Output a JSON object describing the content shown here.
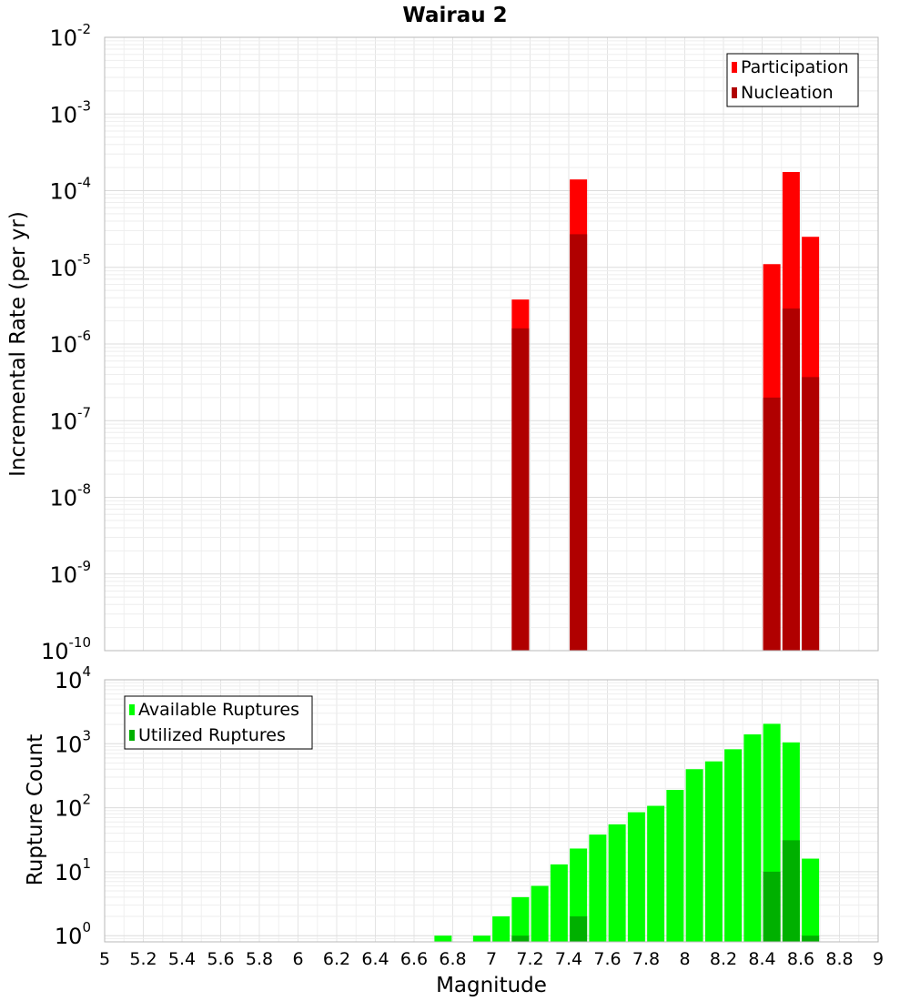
{
  "chart_data": [
    {
      "type": "bar",
      "title": "Wairau 2",
      "ylabel": "Incremental Rate (per yr)",
      "y_scale": "log",
      "ylim": [
        1e-10,
        0.01
      ],
      "y_ticks": [
        {
          "base": "10",
          "exp": "-2"
        },
        {
          "base": "10",
          "exp": "-3"
        },
        {
          "base": "10",
          "exp": "-4"
        },
        {
          "base": "10",
          "exp": "-5"
        },
        {
          "base": "10",
          "exp": "-6"
        },
        {
          "base": "10",
          "exp": "-7"
        },
        {
          "base": "10",
          "exp": "-8"
        },
        {
          "base": "10",
          "exp": "-9"
        },
        {
          "base": "10",
          "exp": "-10"
        }
      ],
      "xlim": [
        5,
        9
      ],
      "grid": true,
      "legend_position": "top-right",
      "series": [
        {
          "name": "Participation",
          "color": "#ff0000",
          "points": [
            {
              "x": 7.15,
              "y": 3.8e-06
            },
            {
              "x": 7.45,
              "y": 0.00014
            },
            {
              "x": 8.45,
              "y": 1.1e-05
            },
            {
              "x": 8.55,
              "y": 0.000175
            },
            {
              "x": 8.65,
              "y": 2.5e-05
            }
          ]
        },
        {
          "name": "Nucleation",
          "color": "#b00000",
          "points": [
            {
              "x": 7.15,
              "y": 1.6e-06
            },
            {
              "x": 7.45,
              "y": 2.7e-05
            },
            {
              "x": 8.45,
              "y": 2e-07
            },
            {
              "x": 8.55,
              "y": 2.9e-06
            },
            {
              "x": 8.65,
              "y": 3.7e-07
            }
          ]
        }
      ]
    },
    {
      "type": "bar",
      "ylabel": "Rupture Count",
      "xlabel": "Magnitude",
      "y_scale": "log",
      "ylim": [
        0.8,
        10000
      ],
      "y_ticks": [
        {
          "base": "10",
          "exp": "4"
        },
        {
          "base": "10",
          "exp": "3"
        },
        {
          "base": "10",
          "exp": "2"
        },
        {
          "base": "10",
          "exp": "1"
        },
        {
          "base": "10",
          "exp": "0"
        }
      ],
      "xlim": [
        5,
        9
      ],
      "x_ticks": [
        "5",
        "5.2",
        "5.4",
        "5.6",
        "5.8",
        "6",
        "6.2",
        "6.4",
        "6.6",
        "6.8",
        "7",
        "7.2",
        "7.4",
        "7.6",
        "7.8",
        "8",
        "8.2",
        "8.4",
        "8.6",
        "8.8",
        "9"
      ],
      "grid": true,
      "legend_position": "top-left",
      "series": [
        {
          "name": "Available Ruptures",
          "color": "#00ff00",
          "points": [
            {
              "x": 6.75,
              "y": 1
            },
            {
              "x": 6.95,
              "y": 1
            },
            {
              "x": 7.05,
              "y": 2
            },
            {
              "x": 7.15,
              "y": 4
            },
            {
              "x": 7.25,
              "y": 6
            },
            {
              "x": 7.35,
              "y": 13
            },
            {
              "x": 7.45,
              "y": 23
            },
            {
              "x": 7.55,
              "y": 38
            },
            {
              "x": 7.65,
              "y": 55
            },
            {
              "x": 7.75,
              "y": 85
            },
            {
              "x": 7.85,
              "y": 107
            },
            {
              "x": 7.95,
              "y": 190
            },
            {
              "x": 8.05,
              "y": 400
            },
            {
              "x": 8.15,
              "y": 530
            },
            {
              "x": 8.25,
              "y": 820
            },
            {
              "x": 8.35,
              "y": 1400
            },
            {
              "x": 8.45,
              "y": 2050
            },
            {
              "x": 8.55,
              "y": 1050
            },
            {
              "x": 8.65,
              "y": 16
            }
          ]
        },
        {
          "name": "Utilized Ruptures",
          "color": "#00b000",
          "points": [
            {
              "x": 7.15,
              "y": 1
            },
            {
              "x": 7.45,
              "y": 2
            },
            {
              "x": 8.45,
              "y": 10
            },
            {
              "x": 8.55,
              "y": 31
            },
            {
              "x": 8.65,
              "y": 1
            }
          ]
        }
      ]
    }
  ]
}
